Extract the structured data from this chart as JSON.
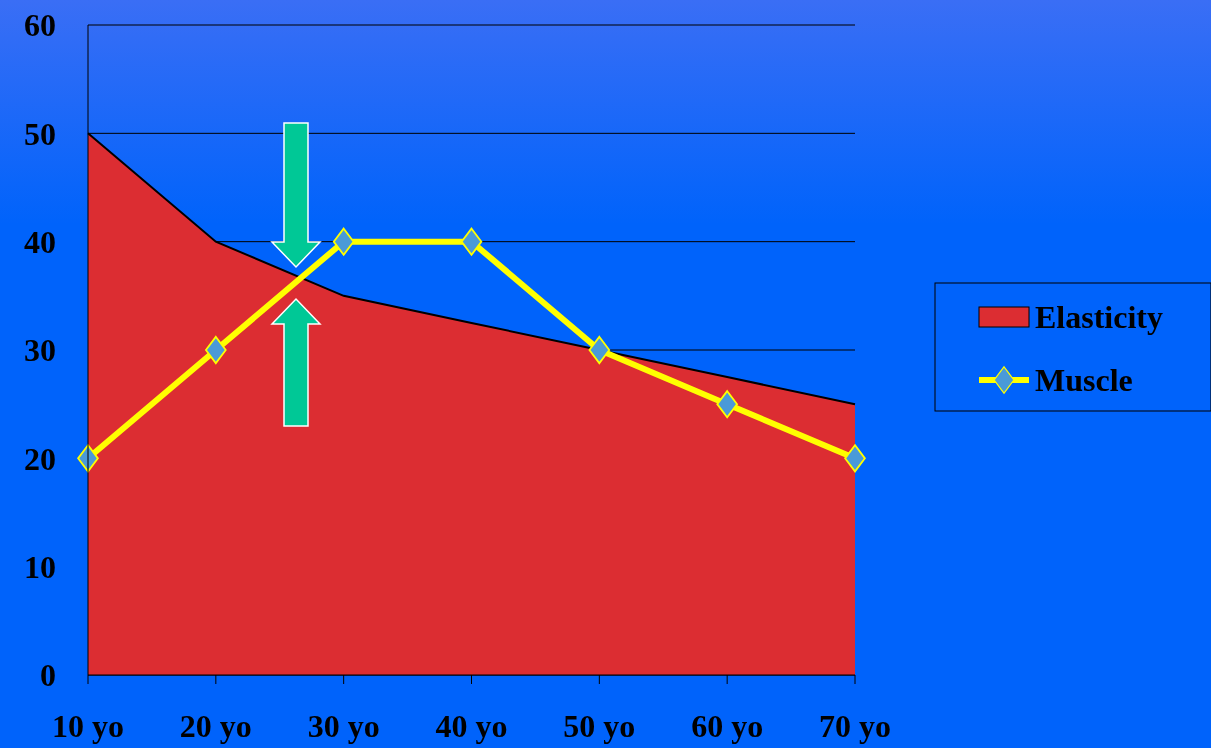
{
  "chart_data": {
    "type": "area",
    "categories": [
      "10 yo",
      "20 yo",
      "30 yo",
      "40 yo",
      "50 yo",
      "60 yo",
      "70 yo"
    ],
    "series": [
      {
        "name": "Elasticity",
        "color": "#dc2d32",
        "values": [
          50,
          40,
          35,
          32.5,
          30,
          27.5,
          25
        ]
      },
      {
        "name": "Muscle",
        "type": "line",
        "marker": "diamond",
        "color": "#ffff00",
        "values": [
          20,
          30,
          40,
          40,
          30,
          25,
          20
        ]
      }
    ],
    "ylim": [
      0,
      60
    ],
    "yticks": [
      0,
      10,
      20,
      30,
      40,
      50,
      60
    ],
    "grid": "y",
    "legend": "right",
    "line_style": "solid"
  }
}
